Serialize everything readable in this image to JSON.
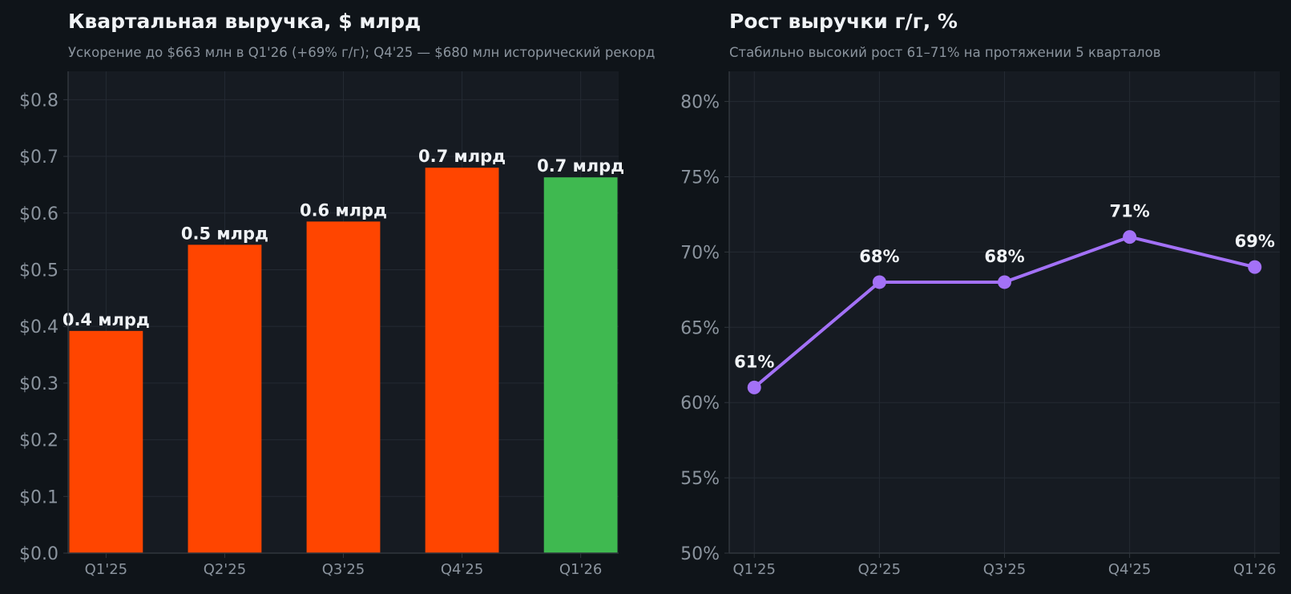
{
  "colors": {
    "background": "#0f1419",
    "plot_background": "#161b22",
    "grid": "#242a33",
    "axis": "#30363d",
    "text": "#f0f3f6",
    "muted_text": "#8b949e",
    "bar_default": "#ff4500",
    "bar_highlight": "#3fb950",
    "line": "#a371f7"
  },
  "left_panel": {
    "title": "Квартальная выручка, $ млрд",
    "subtitle": "Ускорение до $663 млн в Q1'26 (+69% г/г); Q4'25 — $680 млн исторический рекорд"
  },
  "right_panel": {
    "title": "Рост выручки г/г, %",
    "subtitle": "Стабильно высокий рост 61–71% на протяжении 5 кварталов"
  },
  "chart_data": [
    {
      "type": "bar",
      "title": "Квартальная выручка, $ млрд",
      "subtitle": "Ускорение до $663 млн в Q1'26 (+69% г/г); Q4'25 — $680 млн исторический рекорд",
      "categories": [
        "Q1'25",
        "Q2'25",
        "Q3'25",
        "Q4'25",
        "Q1'26"
      ],
      "values": [
        0.392,
        0.544,
        0.585,
        0.68,
        0.663
      ],
      "data_labels": [
        "0.4 млрд",
        "0.5 млрд",
        "0.6 млрд",
        "0.7 млрд",
        "0.7 млрд"
      ],
      "bar_colors": [
        "#ff4500",
        "#ff4500",
        "#ff4500",
        "#ff4500",
        "#3fb950"
      ],
      "ylim": [
        0,
        0.85
      ],
      "yticks": [
        0,
        0.1,
        0.2,
        0.3,
        0.4,
        0.5,
        0.6,
        0.7,
        0.8
      ],
      "ytick_labels": [
        "$0.0",
        "$0.1",
        "$0.2",
        "$0.3",
        "$0.4",
        "$0.5",
        "$0.6",
        "$0.7",
        "$0.8"
      ],
      "grid": true,
      "xlabel": "",
      "ylabel": ""
    },
    {
      "type": "line",
      "title": "Рост выручки г/г, %",
      "subtitle": "Стабильно высокий рост 61–71% на протяжении 5 кварталов",
      "categories": [
        "Q1'25",
        "Q2'25",
        "Q3'25",
        "Q4'25",
        "Q1'26"
      ],
      "values": [
        61,
        68,
        68,
        71,
        69
      ],
      "data_labels": [
        "61%",
        "68%",
        "68%",
        "71%",
        "69%"
      ],
      "line_color": "#a371f7",
      "ylim": [
        50,
        82
      ],
      "yticks": [
        50,
        55,
        60,
        65,
        70,
        75,
        80
      ],
      "ytick_labels": [
        "50%",
        "55%",
        "60%",
        "65%",
        "70%",
        "75%",
        "80%"
      ],
      "grid": true,
      "xlabel": "",
      "ylabel": ""
    }
  ]
}
